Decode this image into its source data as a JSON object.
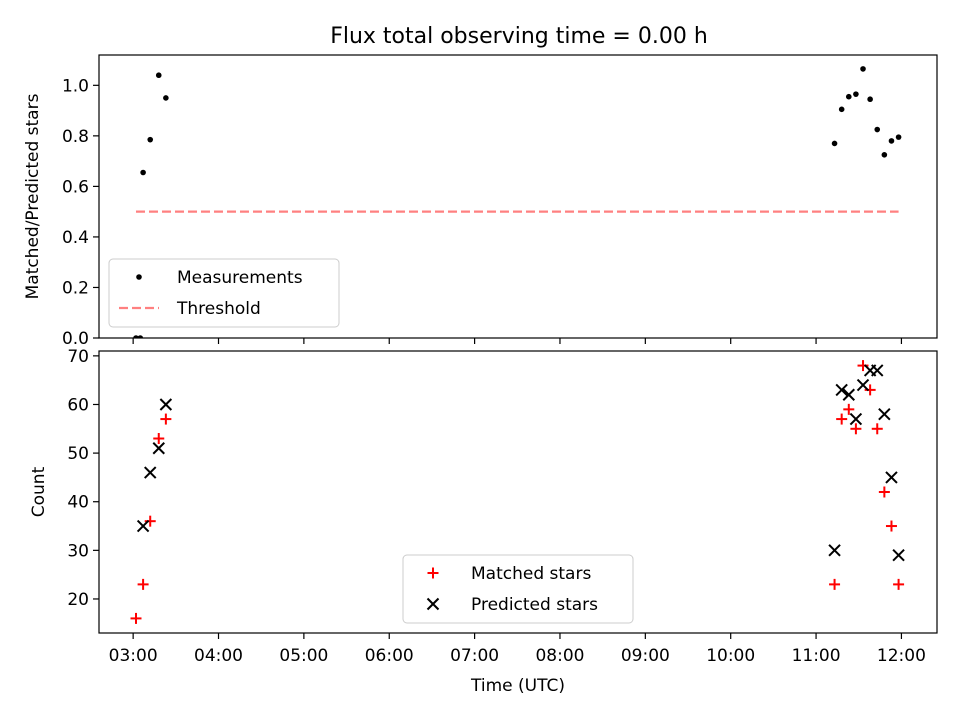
{
  "figure": {
    "title": "Flux total observing time = 0.00 h"
  },
  "chart_data": [
    {
      "type": "scatter",
      "ylabel": "Matched/Predicted stars",
      "xlabel": "",
      "x_axis": "time (UTC, hours)",
      "xlim": [
        "02:36",
        "12:25"
      ],
      "ylim": [
        0.0,
        1.12
      ],
      "yticks": [
        0.0,
        0.2,
        0.4,
        0.6,
        0.8,
        1.0
      ],
      "ytick_labels": [
        "0.0",
        "0.2",
        "0.4",
        "0.6",
        "0.8",
        "1.0"
      ],
      "legend_position": "lower-left",
      "series": [
        {
          "name": "Measurements",
          "marker": "dot",
          "color": "#000000",
          "x": [
            "03:02",
            "03:07",
            "03:12",
            "03:18",
            "03:23",
            "03:05",
            "11:13",
            "11:18",
            "11:23",
            "11:28",
            "11:33",
            "11:38",
            "11:43",
            "11:48",
            "11:53",
            "11:58"
          ],
          "y": [
            0.0,
            0.655,
            0.785,
            1.04,
            0.95,
            0.0,
            0.77,
            0.905,
            0.955,
            0.965,
            1.065,
            0.945,
            0.825,
            0.725,
            0.78,
            0.795
          ],
          "note_indices_excluded": []
        },
        {
          "name": "Threshold",
          "style": "dashed",
          "color": "#ff8080",
          "x": [
            "03:02",
            "11:58"
          ],
          "y": [
            0.5,
            0.5
          ]
        }
      ]
    },
    {
      "type": "scatter",
      "ylabel": "Count",
      "xlabel": "Time (UTC)",
      "xlim": [
        "02:36",
        "12:25"
      ],
      "ylim": [
        13,
        71
      ],
      "yticks": [
        20,
        30,
        40,
        50,
        60,
        70
      ],
      "ytick_labels": [
        "20",
        "30",
        "40",
        "50",
        "60",
        "70"
      ],
      "xticks": [
        "03:00",
        "04:00",
        "05:00",
        "06:00",
        "07:00",
        "08:00",
        "09:00",
        "10:00",
        "11:00",
        "12:00"
      ],
      "legend_position": "lower-center",
      "series": [
        {
          "name": "Matched stars",
          "marker": "plus",
          "color": "#ff0000",
          "x": [
            "03:02",
            "03:07",
            "03:12",
            "03:18",
            "03:23",
            "11:13",
            "11:18",
            "11:23",
            "11:28",
            "11:33",
            "11:38",
            "11:43",
            "11:48",
            "11:53",
            "11:58"
          ],
          "y": [
            16,
            23,
            36,
            53,
            57,
            23,
            57,
            59,
            55,
            68,
            63,
            55,
            42,
            35,
            23
          ]
        },
        {
          "name": "Predicted stars",
          "marker": "x",
          "color": "#000000",
          "x": [
            "03:07",
            "03:12",
            "03:18",
            "03:23",
            "11:13",
            "11:18",
            "11:23",
            "11:28",
            "11:33",
            "11:38",
            "11:43",
            "11:48",
            "11:53",
            "11:58"
          ],
          "y": [
            35,
            46,
            51,
            60,
            30,
            63,
            62,
            57,
            64,
            67,
            67,
            58,
            45,
            29
          ]
        }
      ]
    }
  ]
}
